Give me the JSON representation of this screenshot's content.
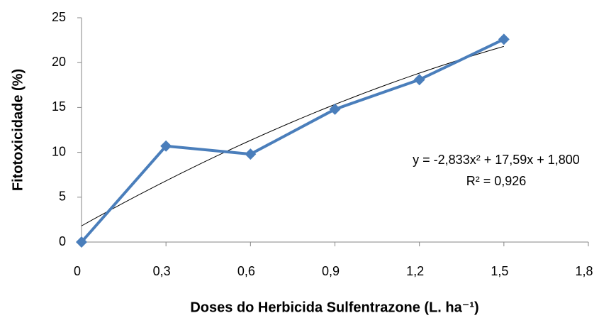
{
  "chart_data": {
    "type": "line",
    "x": [
      0,
      0.3,
      0.6,
      0.9,
      1.2,
      1.5
    ],
    "series": [
      {
        "name": "Fitotoxicidade",
        "color": "#4a7ebb",
        "values": [
          0,
          10.7,
          9.8,
          14.8,
          18.1,
          22.6
        ]
      }
    ],
    "xlim": [
      0,
      1.8
    ],
    "xticks": [
      0,
      {
        "value": 0.3,
        "label": "0,3"
      },
      {
        "value": 0.6,
        "label": "0,6"
      },
      {
        "value": 0.9,
        "label": "0,9"
      },
      {
        "value": 1.2,
        "label": "1,2"
      },
      {
        "value": 1.5,
        "label": "1,5"
      },
      {
        "value": 1.8,
        "label": "1,8"
      }
    ],
    "ylim": [
      0,
      25
    ],
    "yticks": [
      0,
      5,
      10,
      15,
      20,
      25
    ],
    "x_label": "Doses do Herbicida Sulfentrazone (L. ha⁻¹)",
    "y_label": "Fitotoxicidade (%)",
    "grid": false,
    "trendline": {
      "color": "#000000",
      "coefficients": [
        -2.833,
        17.59,
        1.8
      ],
      "equation": "y = -2,833x² + 17,59x + 1,800",
      "r2_label": "R² = 0,926"
    }
  }
}
